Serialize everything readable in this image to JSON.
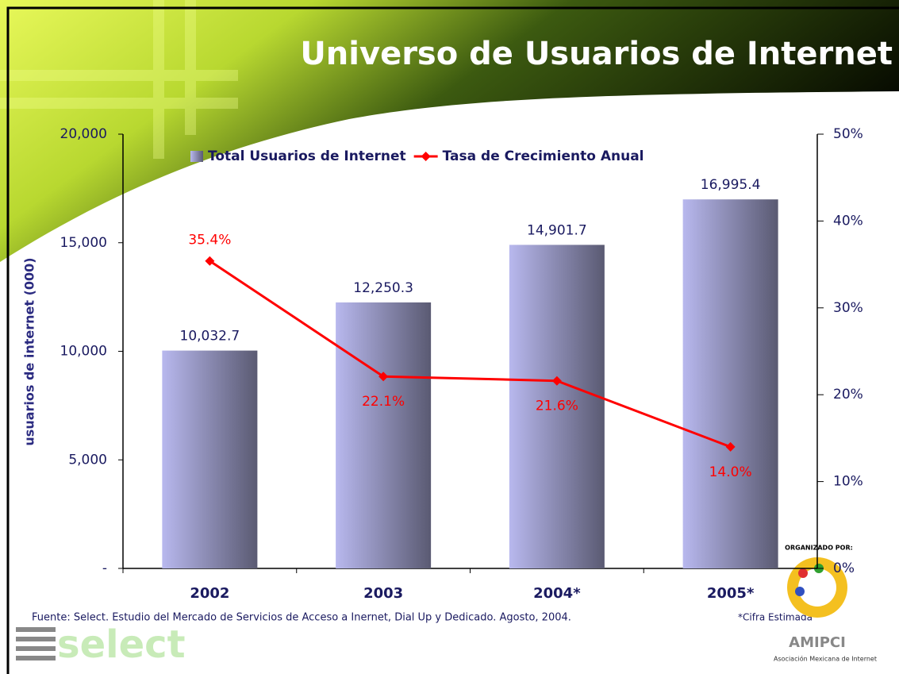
{
  "chart_data": {
    "type": "bar",
    "title": "Universo de Usuarios de Internet",
    "ylabel": "usuarios de internet (000)",
    "categories": [
      "2002",
      "2003",
      "2004*",
      "2005*"
    ],
    "series": [
      {
        "name": "Total Usuarios de Internet",
        "color": "#b8b8ee",
        "values": [
          10032.7,
          12250.3,
          14901.7,
          16995.4
        ],
        "value_labels": [
          "10,032.7",
          "12,250.3",
          "14,901.7",
          "16,995.4"
        ]
      },
      {
        "name": "Tasa de Crecimiento Anual",
        "type": "line",
        "axis": "y2",
        "color": "#ff0000",
        "values": [
          35.4,
          22.1,
          21.6,
          14.0
        ],
        "value_labels": [
          "35.4%",
          "22.1%",
          "21.6%",
          "14.0%"
        ]
      }
    ],
    "ylim": [
      0,
      20000
    ],
    "yticks": [
      {
        "value": 0,
        "label": "-"
      },
      {
        "value": 5000,
        "label": "5,000"
      },
      {
        "value": 10000,
        "label": "10,000"
      },
      {
        "value": 15000,
        "label": "15,000"
      },
      {
        "value": 20000,
        "label": "20,000"
      }
    ],
    "y2lim": [
      0,
      50
    ],
    "y2ticks": [
      {
        "value": 0,
        "label": "0%"
      },
      {
        "value": 10,
        "label": "10%"
      },
      {
        "value": 20,
        "label": "20%"
      },
      {
        "value": 30,
        "label": "30%"
      },
      {
        "value": 40,
        "label": "40%"
      },
      {
        "value": 50,
        "label": "50%"
      }
    ],
    "legend": "top",
    "source": "Fuente: Select. Estudio del Mercado de Servicios de Acceso a Inernet, Dial Up y Dedicado. Agosto, 2004.",
    "note": "*Cifra Estimada"
  },
  "logos": {
    "select": "select",
    "organizer": "ORGANIZADO POR:",
    "amipci": "AMIPCI",
    "amipci_name": "Asociación Mexicana de Internet"
  }
}
